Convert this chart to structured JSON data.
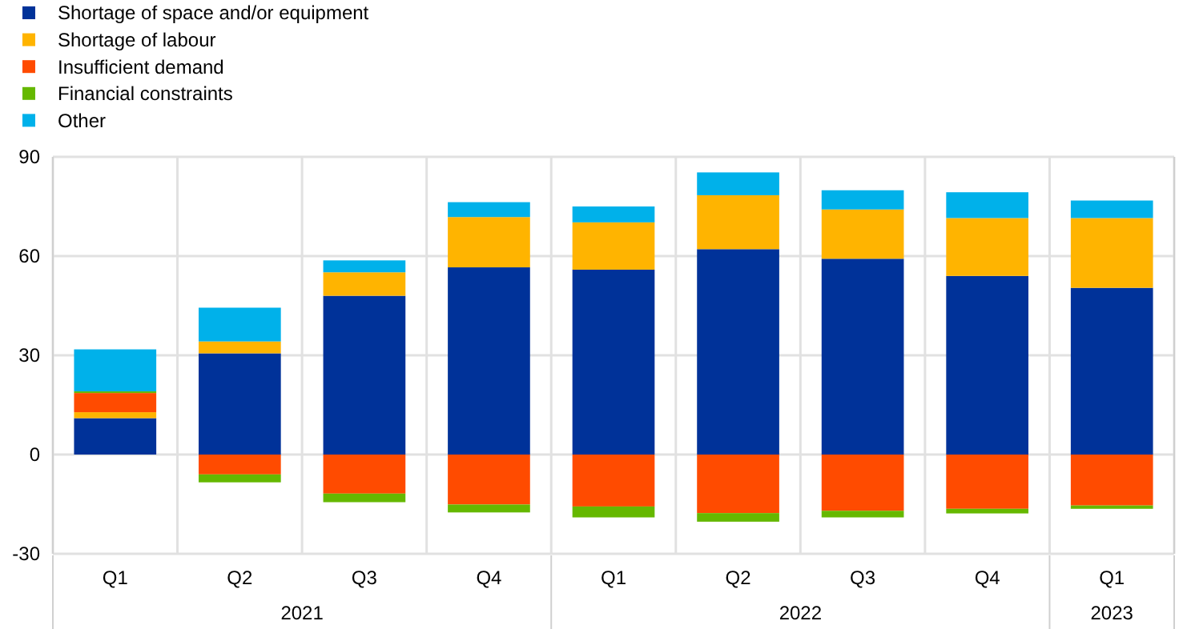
{
  "chart_data": {
    "type": "bar",
    "stacked": true,
    "categories": [
      "Q1",
      "Q2",
      "Q3",
      "Q4",
      "Q1",
      "Q2",
      "Q3",
      "Q4",
      "Q1"
    ],
    "series": [
      {
        "name": "Shortage of space and/or equipment",
        "color": "#003299",
        "values": [
          11.0,
          30.6,
          48.0,
          56.6,
          55.9,
          62.1,
          59.2,
          54.0,
          50.4
        ]
      },
      {
        "name": "Shortage of labour",
        "color": "#ffb400",
        "values": [
          1.8,
          3.6,
          7.1,
          15.2,
          14.3,
          16.3,
          14.9,
          17.5,
          21.1
        ]
      },
      {
        "name": "Insufficient demand",
        "color": "#ff4b00",
        "values": [
          5.8,
          -6.0,
          -11.8,
          -15.1,
          -15.7,
          -17.7,
          -17.0,
          -16.4,
          -15.4
        ]
      },
      {
        "name": "Financial constraints",
        "color": "#65b800",
        "values": [
          0.5,
          -2.4,
          -2.6,
          -2.4,
          -3.3,
          -2.6,
          -2.0,
          -1.4,
          -1.0
        ]
      },
      {
        "name": "Other",
        "color": "#00b1ea",
        "values": [
          12.7,
          10.2,
          3.6,
          4.5,
          4.8,
          6.9,
          5.8,
          7.8,
          5.3
        ]
      }
    ],
    "ylim": [
      -30,
      90
    ],
    "yticks": [
      -30,
      0,
      30,
      60,
      90
    ],
    "grid": true,
    "legend": "top left",
    "annotations": [
      "2021",
      "2022",
      "2023"
    ]
  }
}
